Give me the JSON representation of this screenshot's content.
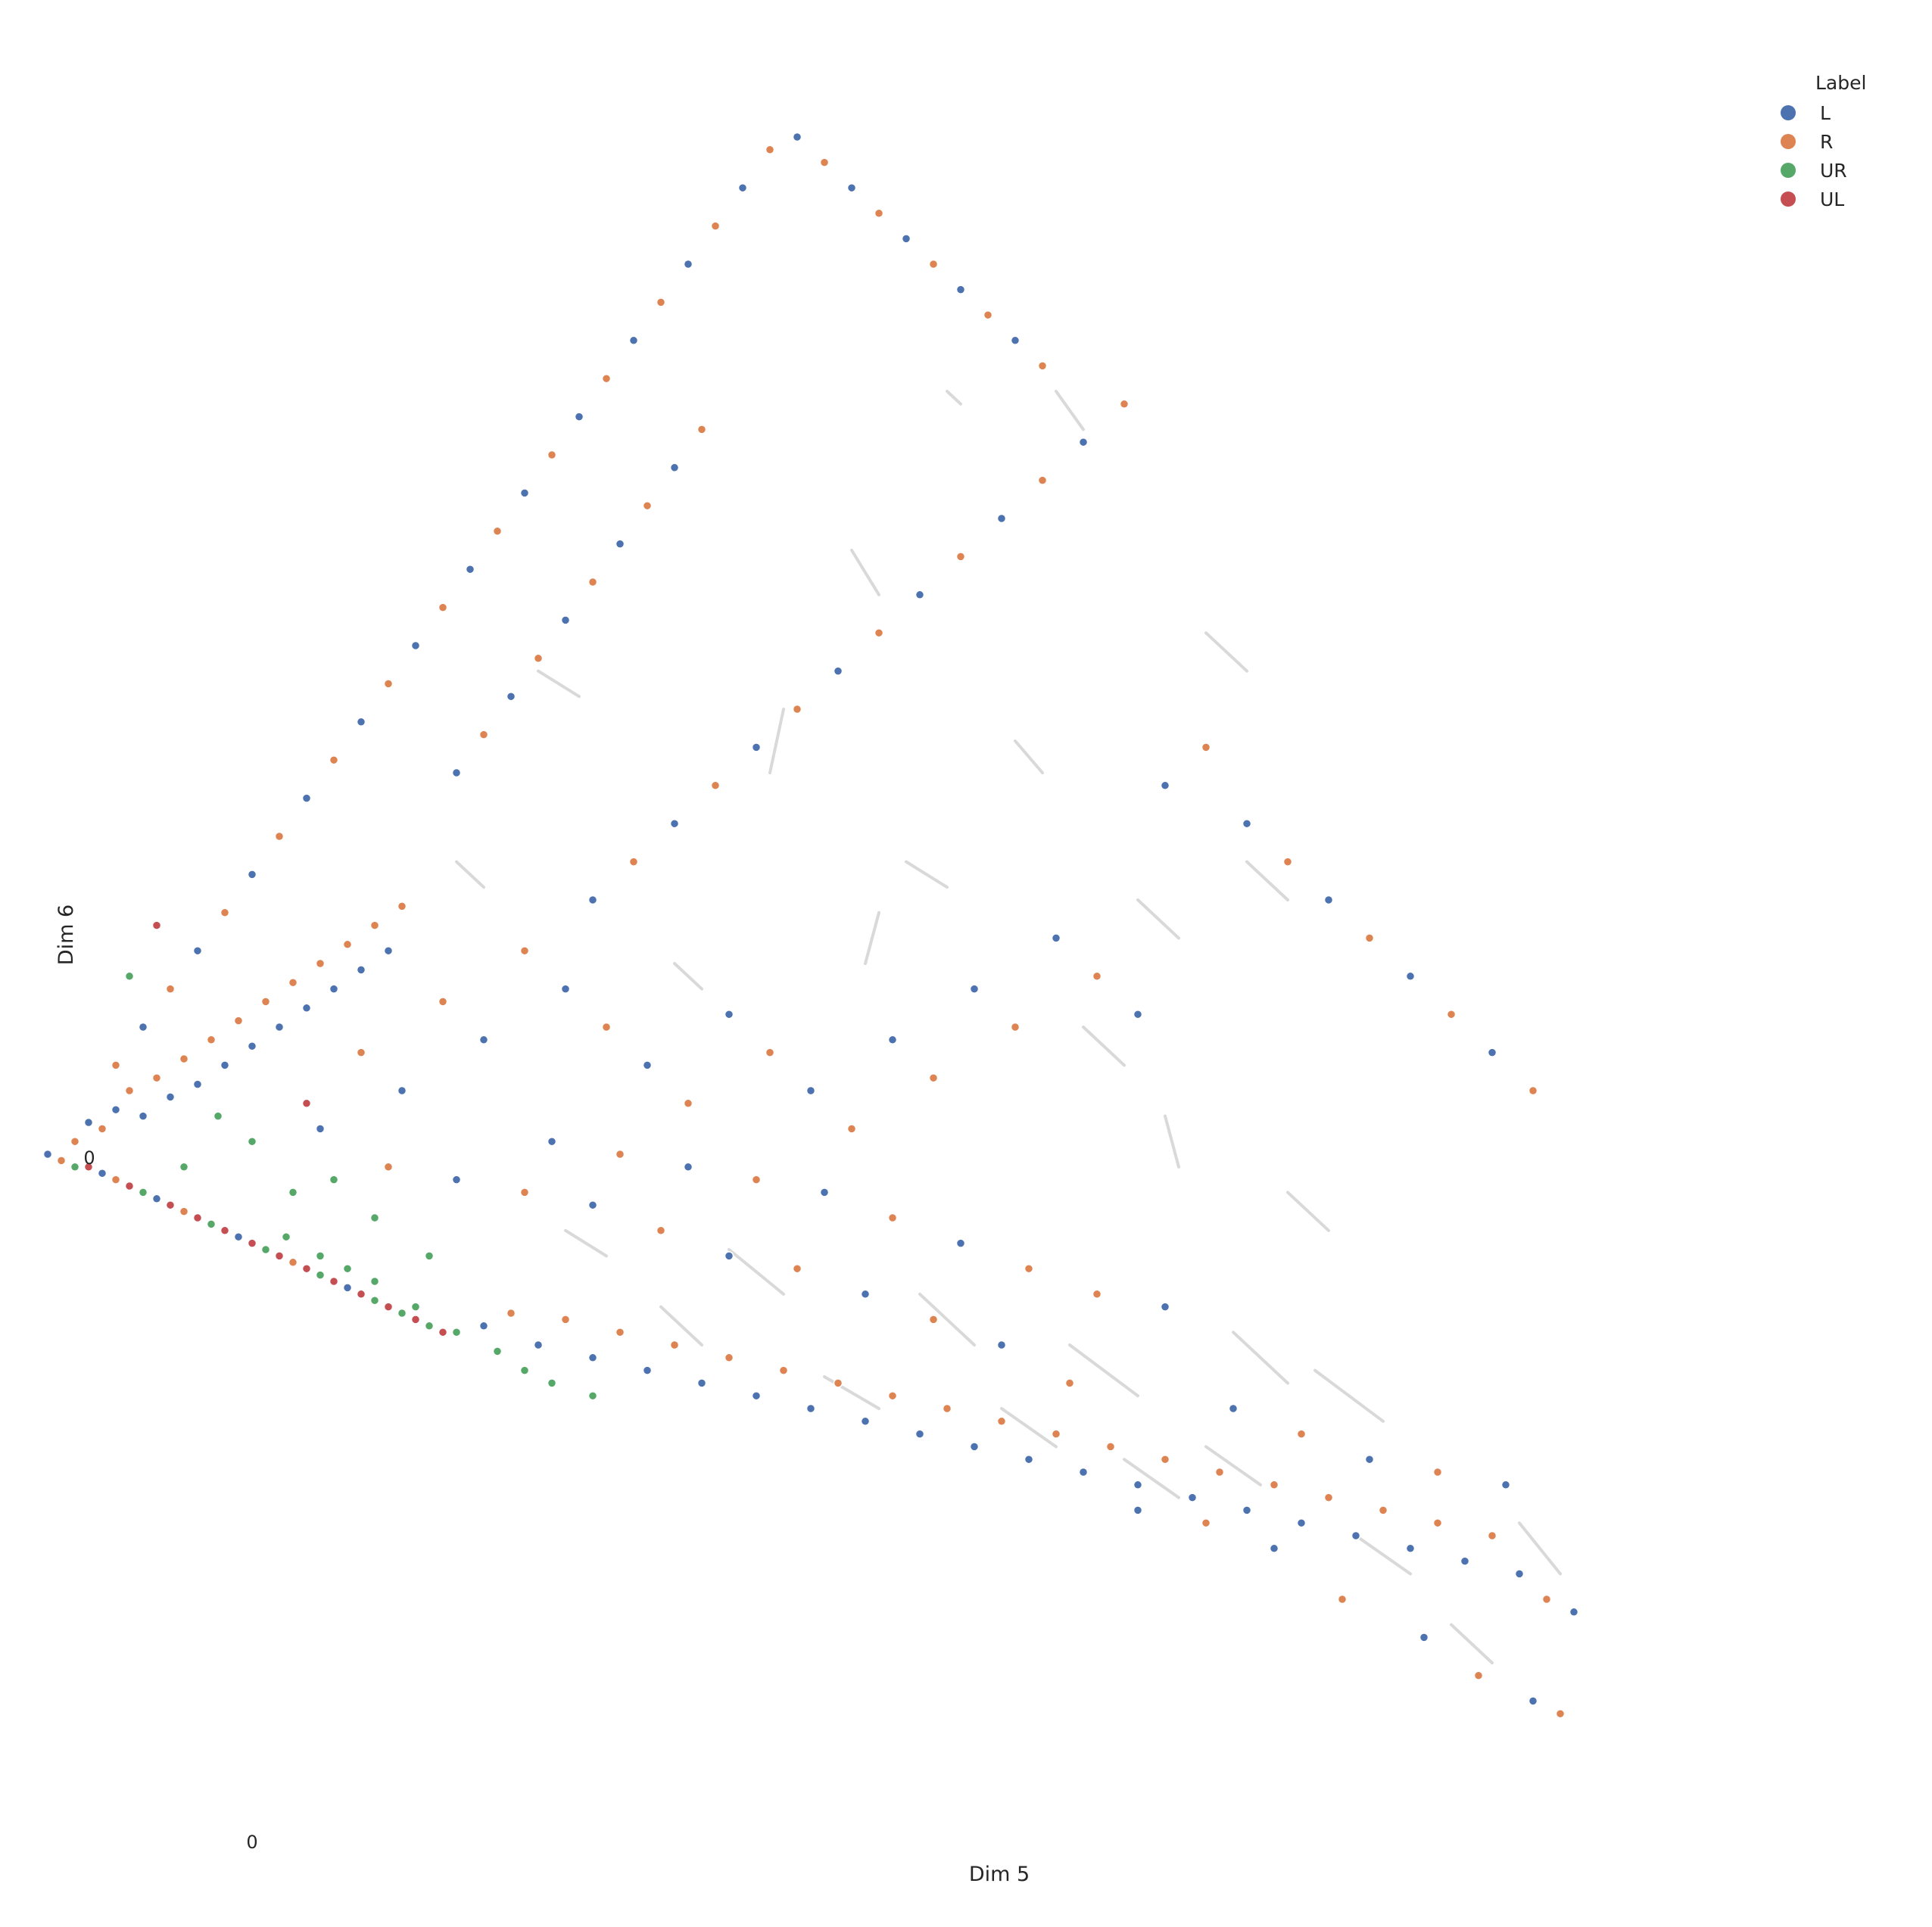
{
  "chart_data": {
    "type": "scatter",
    "title": "",
    "xlabel": "Dim 5",
    "ylabel": "Dim 6",
    "x_ticks": [
      0
    ],
    "y_ticks": [
      0
    ],
    "xlim": [
      -0.32,
      2.0
    ],
    "ylim": [
      -1.04,
      1.64
    ],
    "grid": false,
    "legend": {
      "title": "Label",
      "placement": "top-right"
    },
    "series": [
      {
        "name": "L",
        "color": "#4c72b0"
      },
      {
        "name": "R",
        "color": "#dd8452"
      },
      {
        "name": "UR",
        "color": "#55a868"
      },
      {
        "name": "UL",
        "color": "#c44e52"
      }
    ],
    "connector_color": "#d9d9d9",
    "segments": [
      [
        1.02,
        1.2,
        1.04,
        1.18
      ],
      [
        1.18,
        1.2,
        1.22,
        1.14
      ],
      [
        0.88,
        0.95,
        0.92,
        0.88
      ],
      [
        1.12,
        0.65,
        1.16,
        0.6
      ],
      [
        1.4,
        0.82,
        1.46,
        0.76
      ],
      [
        0.42,
        0.76,
        0.48,
        0.72
      ],
      [
        0.78,
        0.7,
        0.76,
        0.6
      ],
      [
        0.96,
        0.46,
        1.02,
        0.42
      ],
      [
        0.92,
        0.38,
        0.9,
        0.3
      ],
      [
        1.22,
        0.2,
        1.28,
        0.14
      ],
      [
        1.34,
        0.06,
        1.36,
        -0.02
      ],
      [
        1.52,
        -0.06,
        1.58,
        -0.12
      ],
      [
        0.7,
        -0.15,
        0.78,
        -0.22
      ],
      [
        0.98,
        -0.22,
        1.06,
        -0.3
      ],
      [
        1.2,
        -0.3,
        1.3,
        -0.38
      ],
      [
        1.4,
        -0.46,
        1.48,
        -0.52
      ],
      [
        1.62,
        -0.6,
        1.7,
        -0.66
      ],
      [
        1.76,
        -0.74,
        1.82,
        -0.8
      ],
      [
        1.86,
        -0.58,
        1.92,
        -0.66
      ],
      [
        1.56,
        -0.34,
        1.66,
        -0.42
      ],
      [
        1.44,
        -0.28,
        1.52,
        -0.36
      ],
      [
        1.28,
        -0.48,
        1.36,
        -0.54
      ],
      [
        1.1,
        -0.4,
        1.18,
        -0.46
      ],
      [
        0.84,
        -0.35,
        0.92,
        -0.4
      ],
      [
        0.6,
        -0.24,
        0.66,
        -0.3
      ],
      [
        0.46,
        -0.12,
        0.52,
        -0.16
      ],
      [
        1.3,
        0.4,
        1.36,
        0.34
      ],
      [
        1.46,
        0.46,
        1.52,
        0.4
      ],
      [
        0.62,
        0.3,
        0.66,
        0.26
      ],
      [
        0.3,
        0.46,
        0.34,
        0.42
      ]
    ],
    "points": [
      [
        -0.3,
        0.0,
        0
      ],
      [
        -0.28,
        -0.01,
        1
      ],
      [
        -0.26,
        -0.02,
        2
      ],
      [
        -0.24,
        -0.02,
        3
      ],
      [
        -0.22,
        -0.03,
        0
      ],
      [
        -0.2,
        -0.04,
        1
      ],
      [
        -0.18,
        -0.05,
        3
      ],
      [
        -0.16,
        -0.06,
        2
      ],
      [
        -0.14,
        -0.07,
        0
      ],
      [
        -0.12,
        -0.08,
        3
      ],
      [
        -0.1,
        -0.09,
        1
      ],
      [
        -0.08,
        -0.1,
        3
      ],
      [
        -0.06,
        -0.11,
        2
      ],
      [
        -0.04,
        -0.12,
        3
      ],
      [
        -0.02,
        -0.13,
        0
      ],
      [
        0.0,
        -0.14,
        3
      ],
      [
        0.02,
        -0.15,
        2
      ],
      [
        0.04,
        -0.16,
        3
      ],
      [
        0.06,
        -0.17,
        1
      ],
      [
        0.08,
        -0.18,
        3
      ],
      [
        0.1,
        -0.19,
        2
      ],
      [
        0.12,
        -0.2,
        3
      ],
      [
        0.14,
        -0.21,
        0
      ],
      [
        0.16,
        -0.22,
        3
      ],
      [
        0.18,
        -0.23,
        2
      ],
      [
        0.2,
        -0.24,
        3
      ],
      [
        0.22,
        -0.25,
        2
      ],
      [
        0.24,
        -0.26,
        3
      ],
      [
        0.26,
        -0.27,
        2
      ],
      [
        0.28,
        -0.28,
        3
      ],
      [
        0.05,
        -0.13,
        2
      ],
      [
        0.1,
        -0.16,
        2
      ],
      [
        0.14,
        -0.18,
        2
      ],
      [
        0.18,
        -0.2,
        2
      ],
      [
        0.24,
        -0.24,
        2
      ],
      [
        0.3,
        -0.28,
        2
      ],
      [
        0.36,
        -0.31,
        2
      ],
      [
        0.4,
        -0.34,
        2
      ],
      [
        0.44,
        -0.36,
        2
      ],
      [
        0.5,
        -0.38,
        2
      ],
      [
        0.34,
        -0.27,
        0
      ],
      [
        0.38,
        -0.25,
        1
      ],
      [
        0.42,
        -0.3,
        0
      ],
      [
        0.46,
        -0.26,
        1
      ],
      [
        0.5,
        -0.32,
        0
      ],
      [
        0.54,
        -0.28,
        1
      ],
      [
        0.58,
        -0.34,
        0
      ],
      [
        0.62,
        -0.3,
        1
      ],
      [
        0.66,
        -0.36,
        0
      ],
      [
        0.7,
        -0.32,
        1
      ],
      [
        0.74,
        -0.38,
        0
      ],
      [
        0.78,
        -0.34,
        1
      ],
      [
        0.82,
        -0.4,
        0
      ],
      [
        0.86,
        -0.36,
        1
      ],
      [
        0.9,
        -0.42,
        0
      ],
      [
        0.94,
        -0.38,
        1
      ],
      [
        0.98,
        -0.44,
        0
      ],
      [
        1.02,
        -0.4,
        1
      ],
      [
        1.06,
        -0.46,
        0
      ],
      [
        1.1,
        -0.42,
        1
      ],
      [
        1.14,
        -0.48,
        0
      ],
      [
        1.18,
        -0.44,
        1
      ],
      [
        1.22,
        -0.5,
        0
      ],
      [
        1.26,
        -0.46,
        1
      ],
      [
        1.3,
        -0.52,
        0
      ],
      [
        1.34,
        -0.48,
        1
      ],
      [
        1.38,
        -0.54,
        0
      ],
      [
        1.42,
        -0.5,
        1
      ],
      [
        1.46,
        -0.56,
        0
      ],
      [
        1.5,
        -0.52,
        1
      ],
      [
        1.54,
        -0.58,
        0
      ],
      [
        1.58,
        -0.54,
        1
      ],
      [
        1.62,
        -0.6,
        0
      ],
      [
        1.66,
        -0.56,
        1
      ],
      [
        1.7,
        -0.62,
        0
      ],
      [
        1.74,
        -0.58,
        1
      ],
      [
        1.78,
        -0.64,
        0
      ],
      [
        1.82,
        -0.6,
        1
      ],
      [
        1.86,
        -0.66,
        0
      ],
      [
        1.9,
        -0.7,
        1
      ],
      [
        1.94,
        -0.72,
        0
      ],
      [
        1.6,
        -0.7,
        1
      ],
      [
        1.72,
        -0.76,
        0
      ],
      [
        1.8,
        -0.82,
        1
      ],
      [
        1.88,
        -0.86,
        0
      ],
      [
        1.92,
        -0.88,
        1
      ],
      [
        1.5,
        -0.62,
        0
      ],
      [
        1.4,
        -0.58,
        1
      ],
      [
        1.3,
        -0.56,
        0
      ],
      [
        1.2,
        -0.36,
        1
      ],
      [
        1.1,
        -0.3,
        0
      ],
      [
        1.0,
        -0.26,
        1
      ],
      [
        0.9,
        -0.22,
        0
      ],
      [
        0.8,
        -0.18,
        1
      ],
      [
        0.7,
        -0.16,
        0
      ],
      [
        0.6,
        -0.12,
        1
      ],
      [
        0.5,
        -0.08,
        0
      ],
      [
        0.4,
        -0.06,
        1
      ],
      [
        0.3,
        -0.04,
        0
      ],
      [
        0.2,
        -0.02,
        1
      ],
      [
        1.44,
        -0.4,
        0
      ],
      [
        1.54,
        -0.44,
        1
      ],
      [
        1.64,
        -0.48,
        0
      ],
      [
        1.74,
        -0.5,
        1
      ],
      [
        1.84,
        -0.52,
        0
      ],
      [
        1.24,
        -0.22,
        1
      ],
      [
        1.34,
        -0.24,
        0
      ],
      [
        1.14,
        -0.18,
        1
      ],
      [
        1.04,
        -0.14,
        0
      ],
      [
        0.94,
        -0.1,
        1
      ],
      [
        0.84,
        -0.06,
        0
      ],
      [
        0.74,
        -0.04,
        1
      ],
      [
        0.64,
        -0.02,
        0
      ],
      [
        0.54,
        0.0,
        1
      ],
      [
        0.44,
        0.02,
        0
      ],
      [
        -0.26,
        0.02,
        1
      ],
      [
        -0.24,
        0.05,
        0
      ],
      [
        -0.22,
        0.04,
        1
      ],
      [
        -0.2,
        0.07,
        0
      ],
      [
        -0.18,
        0.1,
        1
      ],
      [
        -0.16,
        0.06,
        0
      ],
      [
        -0.14,
        0.12,
        1
      ],
      [
        -0.12,
        0.09,
        0
      ],
      [
        -0.1,
        0.15,
        1
      ],
      [
        -0.08,
        0.11,
        0
      ],
      [
        -0.06,
        0.18,
        1
      ],
      [
        -0.04,
        0.14,
        0
      ],
      [
        -0.02,
        0.21,
        1
      ],
      [
        0.0,
        0.17,
        0
      ],
      [
        0.02,
        0.24,
        1
      ],
      [
        0.04,
        0.2,
        0
      ],
      [
        0.06,
        0.27,
        1
      ],
      [
        0.08,
        0.23,
        0
      ],
      [
        0.1,
        0.3,
        1
      ],
      [
        0.12,
        0.26,
        0
      ],
      [
        0.14,
        0.33,
        1
      ],
      [
        0.16,
        0.29,
        0
      ],
      [
        0.18,
        0.36,
        1
      ],
      [
        0.2,
        0.32,
        0
      ],
      [
        0.22,
        0.39,
        1
      ],
      [
        -0.2,
        0.14,
        1
      ],
      [
        -0.16,
        0.2,
        0
      ],
      [
        -0.12,
        0.26,
        1
      ],
      [
        -0.08,
        0.32,
        0
      ],
      [
        -0.04,
        0.38,
        1
      ],
      [
        0.0,
        0.44,
        0
      ],
      [
        0.04,
        0.5,
        1
      ],
      [
        0.08,
        0.56,
        0
      ],
      [
        0.12,
        0.62,
        1
      ],
      [
        0.16,
        0.68,
        0
      ],
      [
        0.2,
        0.74,
        1
      ],
      [
        0.24,
        0.8,
        0
      ],
      [
        0.28,
        0.86,
        1
      ],
      [
        0.32,
        0.92,
        0
      ],
      [
        0.36,
        0.98,
        1
      ],
      [
        0.4,
        1.04,
        0
      ],
      [
        0.44,
        1.1,
        1
      ],
      [
        0.48,
        1.16,
        0
      ],
      [
        0.52,
        1.22,
        1
      ],
      [
        0.56,
        1.28,
        0
      ],
      [
        0.6,
        1.34,
        1
      ],
      [
        0.64,
        1.4,
        0
      ],
      [
        0.68,
        1.46,
        1
      ],
      [
        0.72,
        1.52,
        0
      ],
      [
        0.76,
        1.58,
        1
      ],
      [
        0.8,
        1.6,
        0
      ],
      [
        0.84,
        1.56,
        1
      ],
      [
        0.88,
        1.52,
        0
      ],
      [
        0.92,
        1.48,
        1
      ],
      [
        0.96,
        1.44,
        0
      ],
      [
        1.0,
        1.4,
        1
      ],
      [
        1.04,
        1.36,
        0
      ],
      [
        1.08,
        1.32,
        1
      ],
      [
        1.12,
        1.28,
        0
      ],
      [
        1.16,
        1.24,
        1
      ],
      [
        0.3,
        0.6,
        0
      ],
      [
        0.34,
        0.66,
        1
      ],
      [
        0.38,
        0.72,
        0
      ],
      [
        0.42,
        0.78,
        1
      ],
      [
        0.46,
        0.84,
        0
      ],
      [
        0.5,
        0.9,
        1
      ],
      [
        0.54,
        0.96,
        0
      ],
      [
        0.58,
        1.02,
        1
      ],
      [
        0.62,
        1.08,
        0
      ],
      [
        0.66,
        1.14,
        1
      ],
      [
        0.5,
        0.4,
        0
      ],
      [
        0.56,
        0.46,
        1
      ],
      [
        0.62,
        0.52,
        0
      ],
      [
        0.68,
        0.58,
        1
      ],
      [
        0.74,
        0.64,
        0
      ],
      [
        0.8,
        0.7,
        1
      ],
      [
        0.86,
        0.76,
        0
      ],
      [
        0.92,
        0.82,
        1
      ],
      [
        0.98,
        0.88,
        0
      ],
      [
        1.04,
        0.94,
        1
      ],
      [
        1.1,
        1.0,
        0
      ],
      [
        1.16,
        1.06,
        1
      ],
      [
        1.22,
        1.12,
        0
      ],
      [
        1.28,
        1.18,
        1
      ],
      [
        1.34,
        0.58,
        0
      ],
      [
        1.4,
        0.64,
        1
      ],
      [
        1.46,
        0.52,
        0
      ],
      [
        1.52,
        0.46,
        1
      ],
      [
        1.58,
        0.4,
        0
      ],
      [
        1.64,
        0.34,
        1
      ],
      [
        1.7,
        0.28,
        0
      ],
      [
        1.76,
        0.22,
        1
      ],
      [
        1.82,
        0.16,
        0
      ],
      [
        1.88,
        0.1,
        1
      ],
      [
        1.3,
        0.22,
        0
      ],
      [
        1.24,
        0.28,
        1
      ],
      [
        1.18,
        0.34,
        0
      ],
      [
        1.12,
        0.2,
        1
      ],
      [
        1.06,
        0.26,
        0
      ],
      [
        1.0,
        0.12,
        1
      ],
      [
        0.94,
        0.18,
        0
      ],
      [
        0.88,
        0.04,
        1
      ],
      [
        0.82,
        0.1,
        0
      ],
      [
        0.76,
        0.16,
        1
      ],
      [
        0.7,
        0.22,
        0
      ],
      [
        0.64,
        0.08,
        1
      ],
      [
        0.58,
        0.14,
        0
      ],
      [
        0.52,
        0.2,
        1
      ],
      [
        0.46,
        0.26,
        0
      ],
      [
        0.4,
        0.32,
        1
      ],
      [
        0.34,
        0.18,
        0
      ],
      [
        0.28,
        0.24,
        1
      ],
      [
        0.22,
        0.1,
        0
      ],
      [
        0.16,
        0.16,
        1
      ],
      [
        0.1,
        0.04,
        0
      ],
      [
        -0.1,
        -0.02,
        2
      ],
      [
        -0.05,
        0.06,
        2
      ],
      [
        0.0,
        0.02,
        2
      ],
      [
        0.06,
        -0.06,
        2
      ],
      [
        -0.14,
        0.36,
        3
      ],
      [
        0.08,
        0.08,
        3
      ],
      [
        -0.18,
        0.28,
        2
      ],
      [
        0.12,
        -0.04,
        2
      ],
      [
        0.18,
        -0.1,
        2
      ],
      [
        0.26,
        -0.16,
        2
      ]
    ]
  },
  "x_tick_label": "0",
  "y_tick_label": "0"
}
